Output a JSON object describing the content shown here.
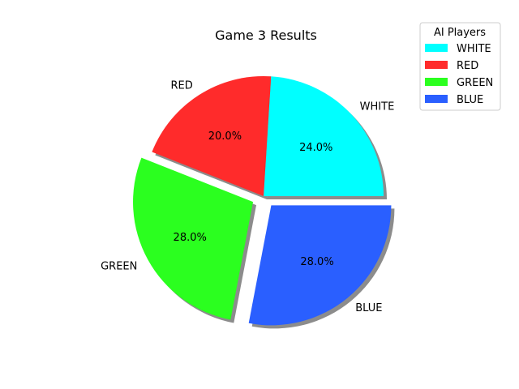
{
  "chart_data": {
    "type": "pie",
    "title": "Game 3 Results",
    "slices": [
      {
        "label": "WHITE",
        "value": 24.0,
        "pct_label": "24.0%",
        "color": "#00ffff",
        "exploded": false
      },
      {
        "label": "RED",
        "value": 20.0,
        "pct_label": "20.0%",
        "color": "#ff2b2b",
        "exploded": false
      },
      {
        "label": "GREEN",
        "value": 28.0,
        "pct_label": "28.0%",
        "color": "#2bff1f",
        "exploded": true
      },
      {
        "label": "BLUE",
        "value": 28.0,
        "pct_label": "28.0%",
        "color": "#2a5fff",
        "exploded": true
      }
    ],
    "shadow": true,
    "start_angle_deg": 0,
    "legend": {
      "title": "AI Players",
      "placement": "top-right",
      "entries": [
        "WHITE",
        "RED",
        "GREEN",
        "BLUE"
      ]
    }
  }
}
